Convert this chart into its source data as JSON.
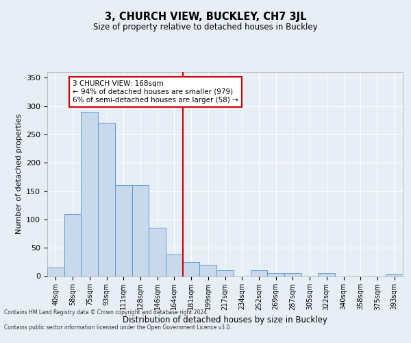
{
  "title": "3, CHURCH VIEW, BUCKLEY, CH7 3JL",
  "subtitle": "Size of property relative to detached houses in Buckley",
  "xlabel": "Distribution of detached houses by size in Buckley",
  "ylabel": "Number of detached properties",
  "categories": [
    "40sqm",
    "58sqm",
    "75sqm",
    "93sqm",
    "111sqm",
    "128sqm",
    "146sqm",
    "164sqm",
    "181sqm",
    "199sqm",
    "217sqm",
    "234sqm",
    "252sqm",
    "269sqm",
    "287sqm",
    "305sqm",
    "322sqm",
    "340sqm",
    "358sqm",
    "375sqm",
    "393sqm"
  ],
  "values": [
    15,
    110,
    290,
    270,
    160,
    160,
    85,
    38,
    25,
    20,
    10,
    0,
    10,
    5,
    5,
    0,
    5,
    0,
    0,
    0,
    3
  ],
  "bar_color": "#c9d9ec",
  "bar_edge_color": "#5b9bd5",
  "vline_color": "#cc0000",
  "vline_pos": 7.5,
  "annotation_text": "3 CHURCH VIEW: 168sqm\n← 94% of detached houses are smaller (979)\n6% of semi-detached houses are larger (58) →",
  "annotation_box_color": "#ffffff",
  "annotation_box_edge": "#cc0000",
  "ylim": [
    0,
    360
  ],
  "yticks": [
    0,
    50,
    100,
    150,
    200,
    250,
    300,
    350
  ],
  "background_color": "#e8eef5",
  "grid_color": "#ffffff",
  "footer1": "Contains HM Land Registry data © Crown copyright and database right 2024.",
  "footer2": "Contains public sector information licensed under the Open Government Licence v3.0."
}
